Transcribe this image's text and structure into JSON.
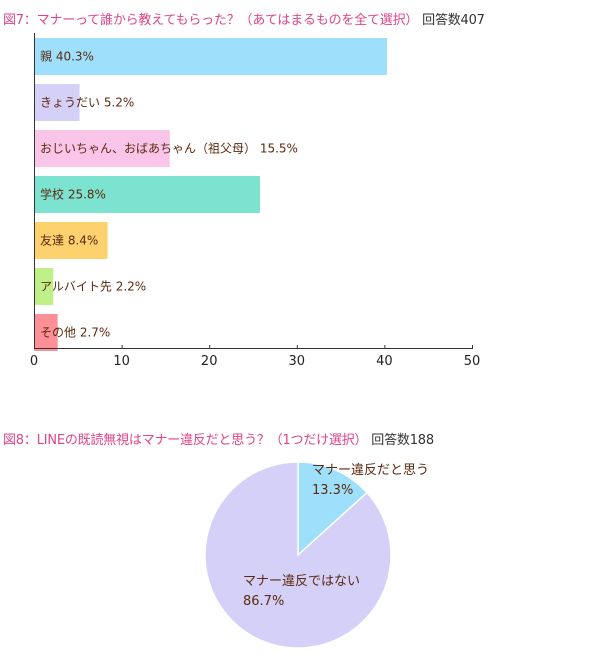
{
  "fig7": {
    "title_prefix": "図7：マナーって誰から教えてもらった？（あてはまるものを全て選択）",
    "title_suffix": "回答数407"
  },
  "fig8": {
    "title_prefix": "図8：LINEの既読無視はマナー違反だと思う？（1つだけ選択）",
    "title_suffix": "回答数188"
  },
  "chart_data": [
    {
      "type": "bar",
      "orientation": "horizontal",
      "title": "図7：マナーって誰から教えてもらった？（あてはまるものを全て選択） 回答数407",
      "categories": [
        "親",
        "きょうだい",
        "おじいちゃん、おばあちゃん（祖父母）",
        "学校",
        "友達",
        "アルバイト先",
        "その他"
      ],
      "values": [
        40.3,
        5.2,
        15.5,
        25.8,
        8.4,
        2.2,
        2.7
      ],
      "value_labels": [
        "40.3%",
        "5.2%",
        "15.5%",
        "25.8%",
        "8.4%",
        "2.2%",
        "2.7%"
      ],
      "colors": [
        "#9ee0fc",
        "#d4d0f8",
        "#f9c6ea",
        "#7de3d1",
        "#fdd16e",
        "#bff087",
        "#fc8f97"
      ],
      "xlim": [
        0,
        50
      ],
      "xticks": [
        "0",
        "10",
        "20",
        "30",
        "40",
        "50"
      ],
      "xtick_values": [
        0,
        10,
        20,
        30,
        40,
        50
      ],
      "grid": false
    },
    {
      "type": "pie",
      "title": "図8：LINEの既読無視はマナー違反だと思う？（1つだけ選択） 回答数188",
      "labels": [
        "マナー違反だと思う",
        "マナー違反ではない"
      ],
      "values": [
        13.3,
        86.7
      ],
      "value_labels": [
        "13.3%",
        "86.7%"
      ],
      "colors": [
        "#9ee0fc",
        "#d4d0f8"
      ],
      "start": "top",
      "direction": "clockwise"
    }
  ]
}
